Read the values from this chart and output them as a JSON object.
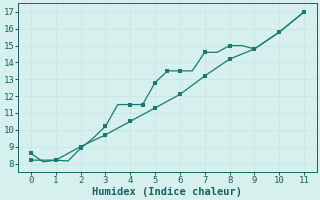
{
  "xlabel": "Humidex (Indice chaleur)",
  "xlim": [
    -0.5,
    11.5
  ],
  "ylim": [
    7.5,
    17.5
  ],
  "xticks": [
    0,
    1,
    2,
    3,
    4,
    5,
    6,
    7,
    8,
    9,
    10,
    11
  ],
  "yticks": [
    8,
    9,
    10,
    11,
    12,
    13,
    14,
    15,
    16,
    17
  ],
  "line_color": "#1a7a6e",
  "bg_color": "#d6f0ee",
  "grid_color": "#c8e8e4",
  "line1_x": [
    0,
    0.5,
    1,
    1.5,
    2,
    2.5,
    3,
    3.5,
    4,
    4.5,
    5,
    5.5,
    6,
    6.5,
    7,
    7.5,
    8,
    8.5,
    9,
    10,
    11
  ],
  "line1_y": [
    8.6,
    8.1,
    8.2,
    8.15,
    8.9,
    9.5,
    10.2,
    11.5,
    11.5,
    11.5,
    12.8,
    13.5,
    13.5,
    13.5,
    14.6,
    14.6,
    15.0,
    15.0,
    14.8,
    15.8,
    17.0
  ],
  "line2_x": [
    0,
    1,
    2,
    3,
    4,
    5,
    6,
    7,
    8,
    9,
    10,
    11
  ],
  "line2_y": [
    8.2,
    8.2,
    9.0,
    9.7,
    10.5,
    11.3,
    12.1,
    13.2,
    14.2,
    14.8,
    15.8,
    17.0
  ],
  "marker1_x": [
    0,
    1,
    2,
    3,
    4,
    4.5,
    5,
    5.5,
    6,
    7,
    8,
    9,
    10,
    11
  ],
  "marker1_y": [
    8.6,
    8.2,
    8.9,
    10.2,
    11.5,
    11.5,
    12.8,
    13.5,
    13.5,
    14.6,
    15.0,
    14.8,
    15.8,
    17.0
  ],
  "marker2_x": [
    0,
    1,
    2,
    3,
    4,
    5,
    6,
    7,
    8,
    9,
    10,
    11
  ],
  "marker2_y": [
    8.2,
    8.2,
    9.0,
    9.7,
    10.5,
    11.3,
    12.1,
    13.2,
    14.2,
    14.8,
    15.8,
    17.0
  ],
  "font_color": "#1a6060",
  "tick_fontsize": 6.5,
  "label_fontsize": 7.5
}
